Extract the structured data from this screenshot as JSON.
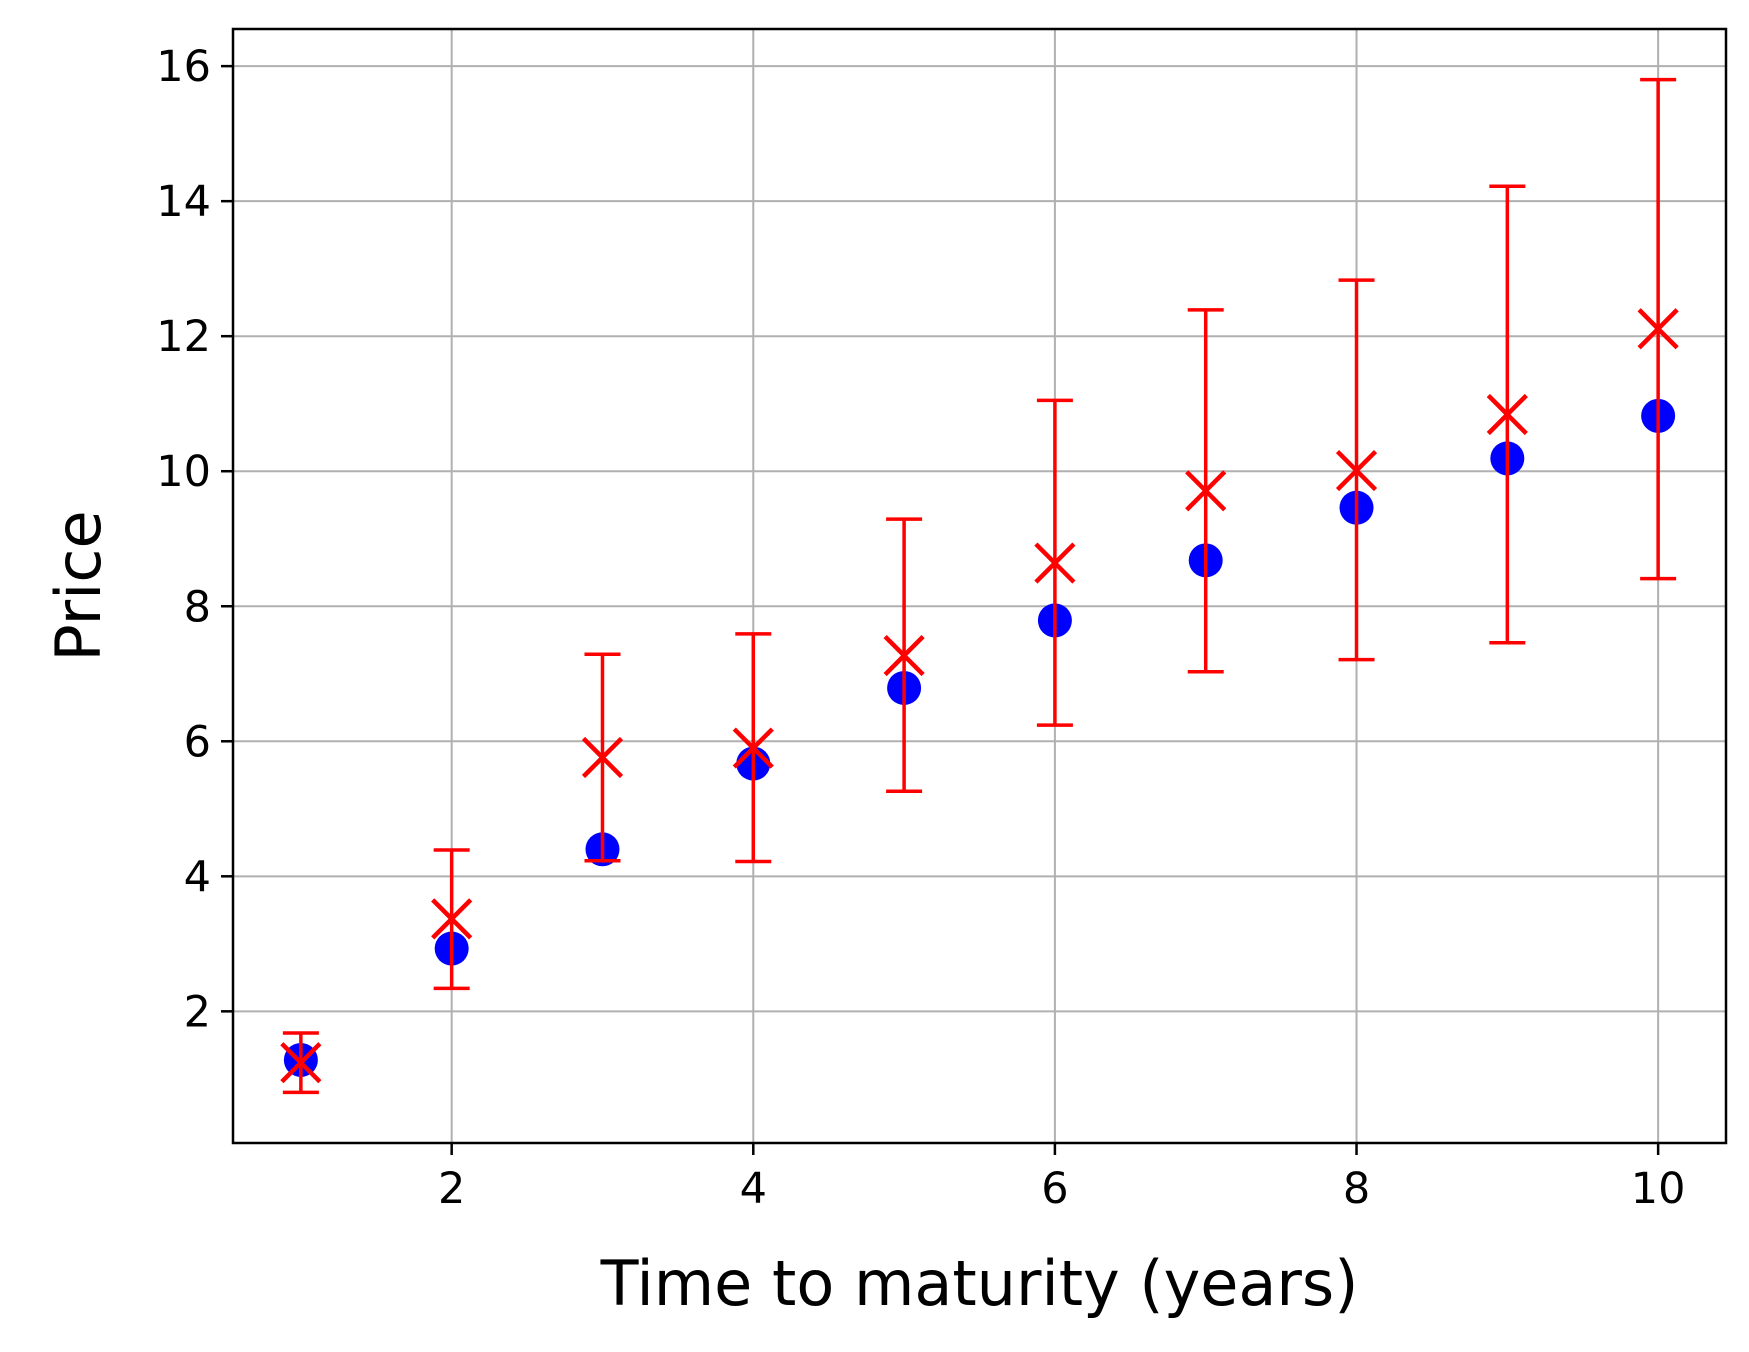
{
  "chart_data": {
    "type": "scatter",
    "title": "",
    "xlabel": "Time to maturity (years)",
    "ylabel": "Price",
    "xlim": [
      0.55,
      10.45
    ],
    "ylim": [
      0.05,
      16.55
    ],
    "xticks": [
      2,
      4,
      6,
      8,
      10
    ],
    "yticks": [
      2,
      4,
      6,
      8,
      10,
      12,
      14,
      16
    ],
    "grid": true,
    "legend": "none",
    "colors": {
      "dots": "#0000ff",
      "crosses": "#ff0000",
      "grid": "#b0b0b0",
      "axes": "#000000"
    },
    "series": [
      {
        "marker": "circle",
        "color": "#0000ff",
        "x": [
          1,
          2,
          3,
          4,
          5,
          6,
          7,
          8,
          9,
          10
        ],
        "y": [
          1.28,
          2.93,
          4.4,
          5.67,
          6.79,
          7.79,
          8.68,
          9.46,
          10.19,
          10.82
        ]
      },
      {
        "marker": "x",
        "color": "#ff0000",
        "errorbars": true,
        "x": [
          1,
          2,
          3,
          4,
          5,
          6,
          7,
          8,
          9,
          10
        ],
        "y": [
          1.24,
          3.37,
          5.76,
          5.9,
          7.27,
          8.64,
          9.71,
          10.01,
          10.84,
          12.11
        ],
        "yerr_low": [
          0.8,
          2.34,
          4.23,
          4.22,
          5.26,
          6.24,
          7.03,
          7.21,
          7.46,
          8.41
        ],
        "yerr_high": [
          1.68,
          4.39,
          7.29,
          7.59,
          9.29,
          11.05,
          12.39,
          12.83,
          14.22,
          15.8
        ]
      }
    ]
  }
}
